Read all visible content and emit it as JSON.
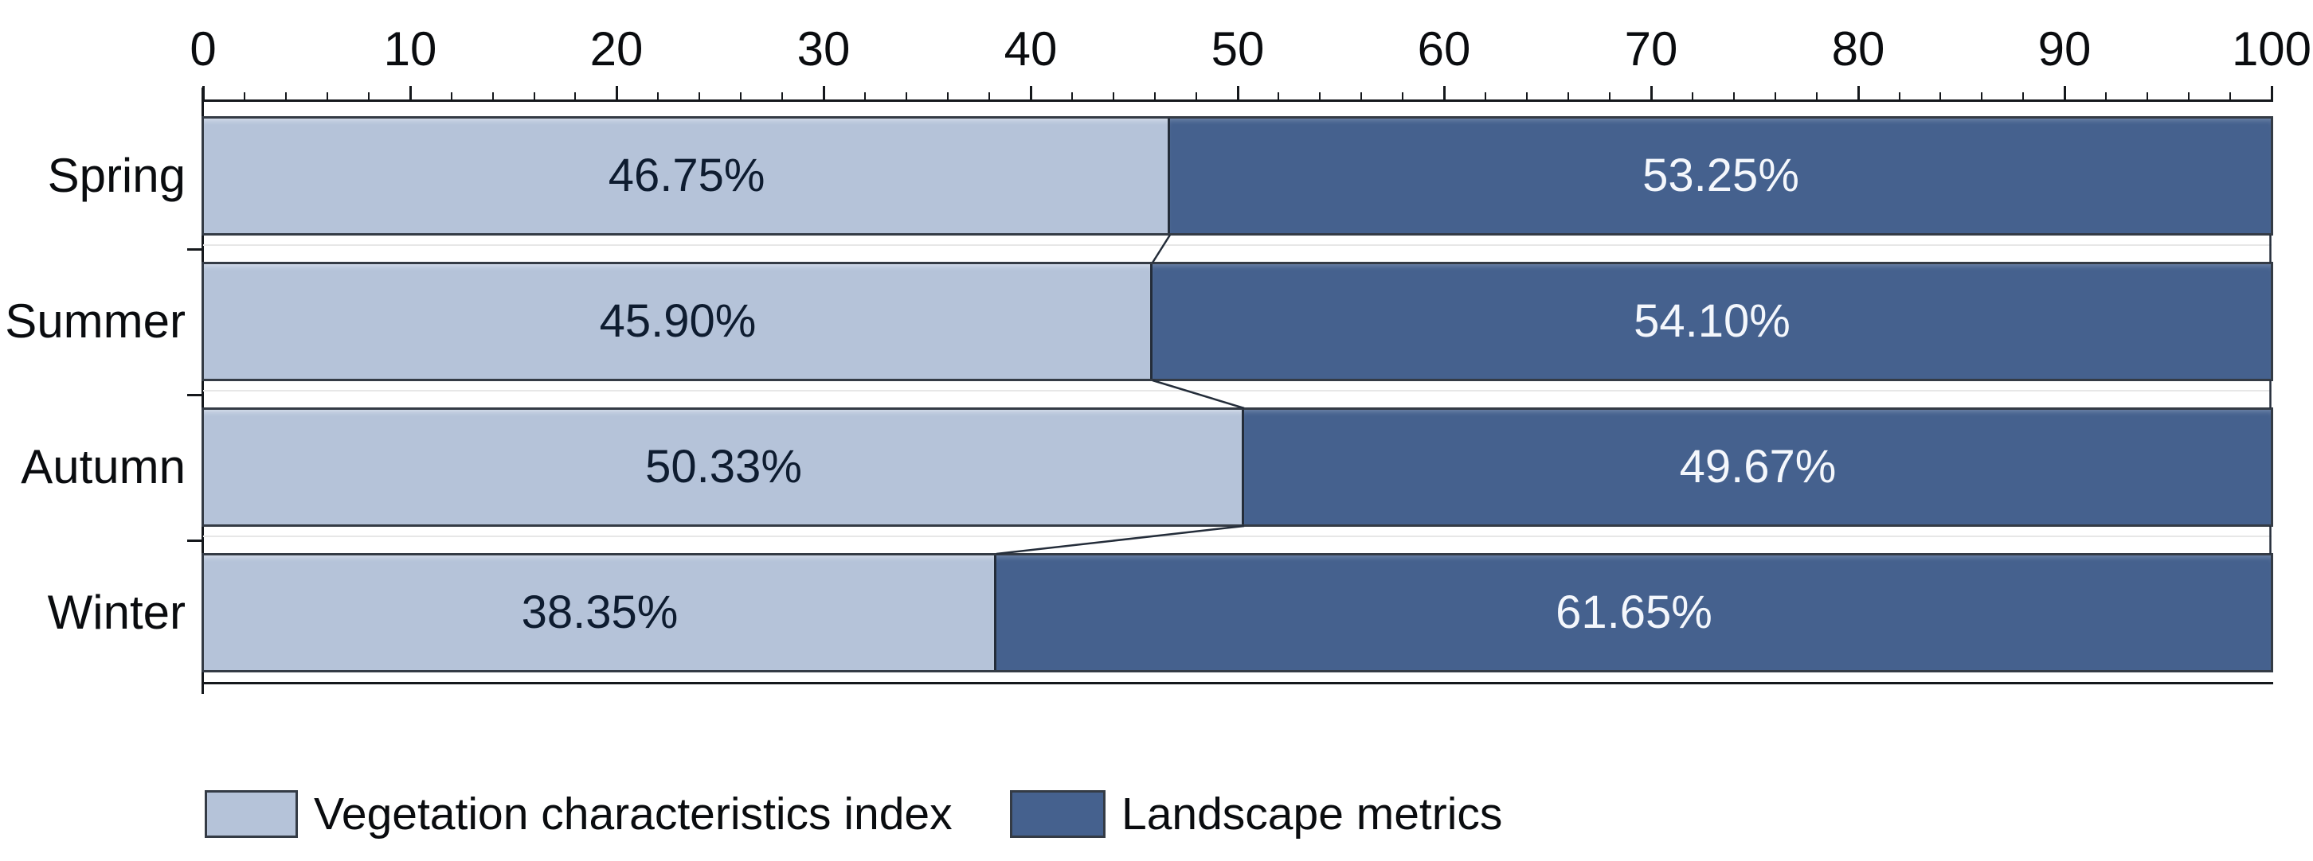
{
  "chart_data": {
    "type": "bar",
    "orientation": "horizontal-stacked",
    "title": "",
    "categories": [
      "Spring",
      "Summer",
      "Autumn",
      "Winter"
    ],
    "series": [
      {
        "name": "Vegetation characteristics index",
        "color": "#b5c3d9",
        "label_color": "#0e1c30",
        "values": [
          46.75,
          45.9,
          50.33,
          38.35
        ],
        "labels": [
          "46.75%",
          "45.90%",
          "50.33%",
          "38.35%"
        ]
      },
      {
        "name": "Landscape metrics",
        "color": "#45618e",
        "label_color": "#f4f7fc",
        "values": [
          53.25,
          54.1,
          49.67,
          61.65
        ],
        "labels": [
          "53.25%",
          "54.10%",
          "49.67%",
          "61.65%"
        ]
      }
    ],
    "x_axis": {
      "position": "top",
      "min": 0,
      "max": 100,
      "major_tick_step": 10,
      "minor_tick_step": 2,
      "tick_labels": [
        "0",
        "10",
        "20",
        "30",
        "40",
        "50",
        "60",
        "70",
        "80",
        "90",
        "100"
      ]
    },
    "grid": false,
    "legend_position": "bottom",
    "connector_lines": true,
    "axis_color": "#15181c",
    "bar_border_color": "#343b45"
  }
}
